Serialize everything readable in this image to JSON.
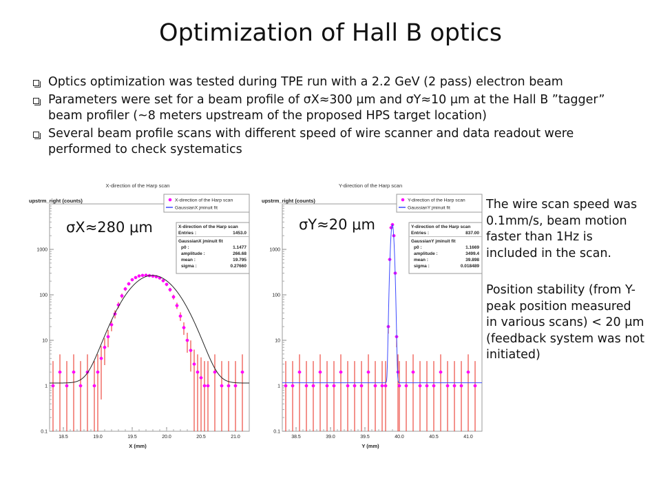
{
  "slide": {
    "title": "Optimization of Hall B optics",
    "bullets": [
      "Optics optimization was tested during TPE run with a 2.2 GeV (2 pass) electron beam",
      "Parameters were set for a beam profile of σX≈300 μm and σY≈10 μm at the Hall B ”tagger” beam profiler (~8 meters upstream of the proposed HPS target location)",
      "Several beam profile scans with different speed of wire scanner and data readout were performed to check systematics"
    ],
    "sigma_x_label": "σX≈280 μm",
    "sigma_y_label": "σY≈20 μm",
    "side_note_1": "The wire scan speed was 0.1mm/s, beam motion faster than 1Hz is included in the scan.",
    "side_note_2": "Position stability (from Y-peak position measured in various scans) < 20 μm (feedback system was not initiated)"
  },
  "colors": {
    "data_markers": "#ff00ff",
    "error_bars": "#e8251a",
    "fit_x": "#222222",
    "fit_y": "#3a48ff"
  },
  "chart_data": [
    {
      "type": "scatter",
      "title": "X-direction of the Harp scan",
      "xlabel": "X (mm)",
      "ylabel": "upstrm_right (counts)",
      "yscale": "log",
      "xlim": [
        18.3,
        21.2
      ],
      "ylim": [
        0.1,
        10000
      ],
      "xticks": [
        18.5,
        19.0,
        19.5,
        20.0,
        20.5,
        21.0
      ],
      "xtick_labels": [
        "18.5",
        "19.0",
        "19.5",
        "20.0",
        "20.5",
        "21.0"
      ],
      "yticks": [
        0.1,
        1,
        10,
        100,
        1000
      ],
      "ytick_labels": [
        "0.1",
        "1",
        "10",
        "100",
        "1000"
      ],
      "legend": [
        {
          "label": "X-direction of the Harp scan",
          "marker": "point"
        },
        {
          "label": "GaussianX jminuit fit",
          "marker": "line"
        }
      ],
      "legend_position": "top-right",
      "stats": {
        "hist_title": "X-direction of the Harp scan",
        "entries_label": "Entries :",
        "entries": "1453.0",
        "fit_title": "GaussianX jminuit fit",
        "params": [
          {
            "name": "p0 :",
            "value": "1.1477"
          },
          {
            "name": "amplitude :",
            "value": "266.68"
          },
          {
            "name": "mean :",
            "value": "19.795"
          },
          {
            "name": "sigma :",
            "value": "0.27660"
          }
        ]
      },
      "series": [
        {
          "name": "X-direction of the Harp scan",
          "x": [
            18.35,
            18.45,
            18.55,
            18.65,
            18.75,
            18.85,
            18.95,
            19.0,
            19.05,
            19.1,
            19.15,
            19.2,
            19.25,
            19.3,
            19.35,
            19.4,
            19.45,
            19.5,
            19.55,
            19.6,
            19.65,
            19.7,
            19.75,
            19.8,
            19.85,
            19.9,
            19.95,
            20.0,
            20.05,
            20.1,
            20.15,
            20.2,
            20.25,
            20.3,
            20.35,
            20.4,
            20.45,
            20.5,
            20.55,
            20.6,
            20.7,
            20.8,
            20.9,
            21.0,
            21.1
          ],
          "y": [
            1,
            2,
            1,
            2,
            1,
            2,
            1,
            2,
            4,
            7,
            12,
            22,
            38,
            60,
            95,
            135,
            175,
            215,
            240,
            260,
            268,
            270,
            265,
            258,
            250,
            235,
            205,
            170,
            130,
            90,
            58,
            34,
            19,
            10,
            6,
            3,
            2,
            1.5,
            1,
            1,
            2,
            1,
            1,
            1,
            2
          ]
        },
        {
          "name": "GaussianX jminuit fit",
          "fit": "gaussian",
          "p0": 1.1477,
          "amplitude": 266.68,
          "mean": 19.795,
          "sigma": 0.2766
        }
      ]
    },
    {
      "type": "scatter",
      "title": "Y-direction of the Harp scan",
      "xlabel": "Y (mm)",
      "ylabel": "upstrm_right (counts)",
      "yscale": "log",
      "xlim": [
        38.3,
        41.2
      ],
      "ylim": [
        0.1,
        10000
      ],
      "xticks": [
        38.5,
        39.0,
        39.5,
        40.0,
        40.5,
        41.0
      ],
      "xtick_labels": [
        "38.5",
        "39.0",
        "39.5",
        "40.0",
        "40.5",
        "41.0"
      ],
      "yticks": [
        0.1,
        1,
        10,
        100,
        1000
      ],
      "ytick_labels": [
        "0.1",
        "1",
        "10",
        "100",
        "1000"
      ],
      "legend": [
        {
          "label": "Y-direction of the Harp scan",
          "marker": "point"
        },
        {
          "label": "GaussianY jminuit fit",
          "marker": "line"
        }
      ],
      "legend_position": "top-right",
      "stats": {
        "hist_title": "Y-direction of the Harp scan",
        "entries_label": "Entries :",
        "entries": "837.00",
        "fit_title": "GaussianY jminuit fit",
        "params": [
          {
            "name": "p0 :",
            "value": "1.1669"
          },
          {
            "name": "amplitude :",
            "value": "3499.4"
          },
          {
            "name": "mean :",
            "value": "39.898"
          },
          {
            "name": "sigma :",
            "value": "0.018489"
          }
        ]
      },
      "series": [
        {
          "name": "Y-direction of the Harp scan",
          "x": [
            38.35,
            38.45,
            38.55,
            38.65,
            38.75,
            38.85,
            38.95,
            39.05,
            39.15,
            39.25,
            39.35,
            39.45,
            39.55,
            39.65,
            39.75,
            39.8,
            39.84,
            39.86,
            39.88,
            39.9,
            39.92,
            39.94,
            39.96,
            39.98,
            40.0,
            40.1,
            40.2,
            40.3,
            40.4,
            40.5,
            40.6,
            40.7,
            40.8,
            40.9,
            41.0,
            41.1
          ],
          "y": [
            1,
            1,
            2,
            1,
            1,
            2,
            1,
            1,
            2,
            1,
            1,
            1,
            2,
            1,
            1,
            1,
            20,
            600,
            3000,
            3500,
            2000,
            300,
            12,
            2,
            1,
            1,
            2,
            1,
            1,
            1,
            2,
            1,
            1,
            1,
            2,
            1
          ]
        },
        {
          "name": "GaussianY jminuit fit",
          "fit": "gaussian",
          "p0": 1.1669,
          "amplitude": 3499.4,
          "mean": 39.898,
          "sigma": 0.018489
        }
      ]
    }
  ]
}
